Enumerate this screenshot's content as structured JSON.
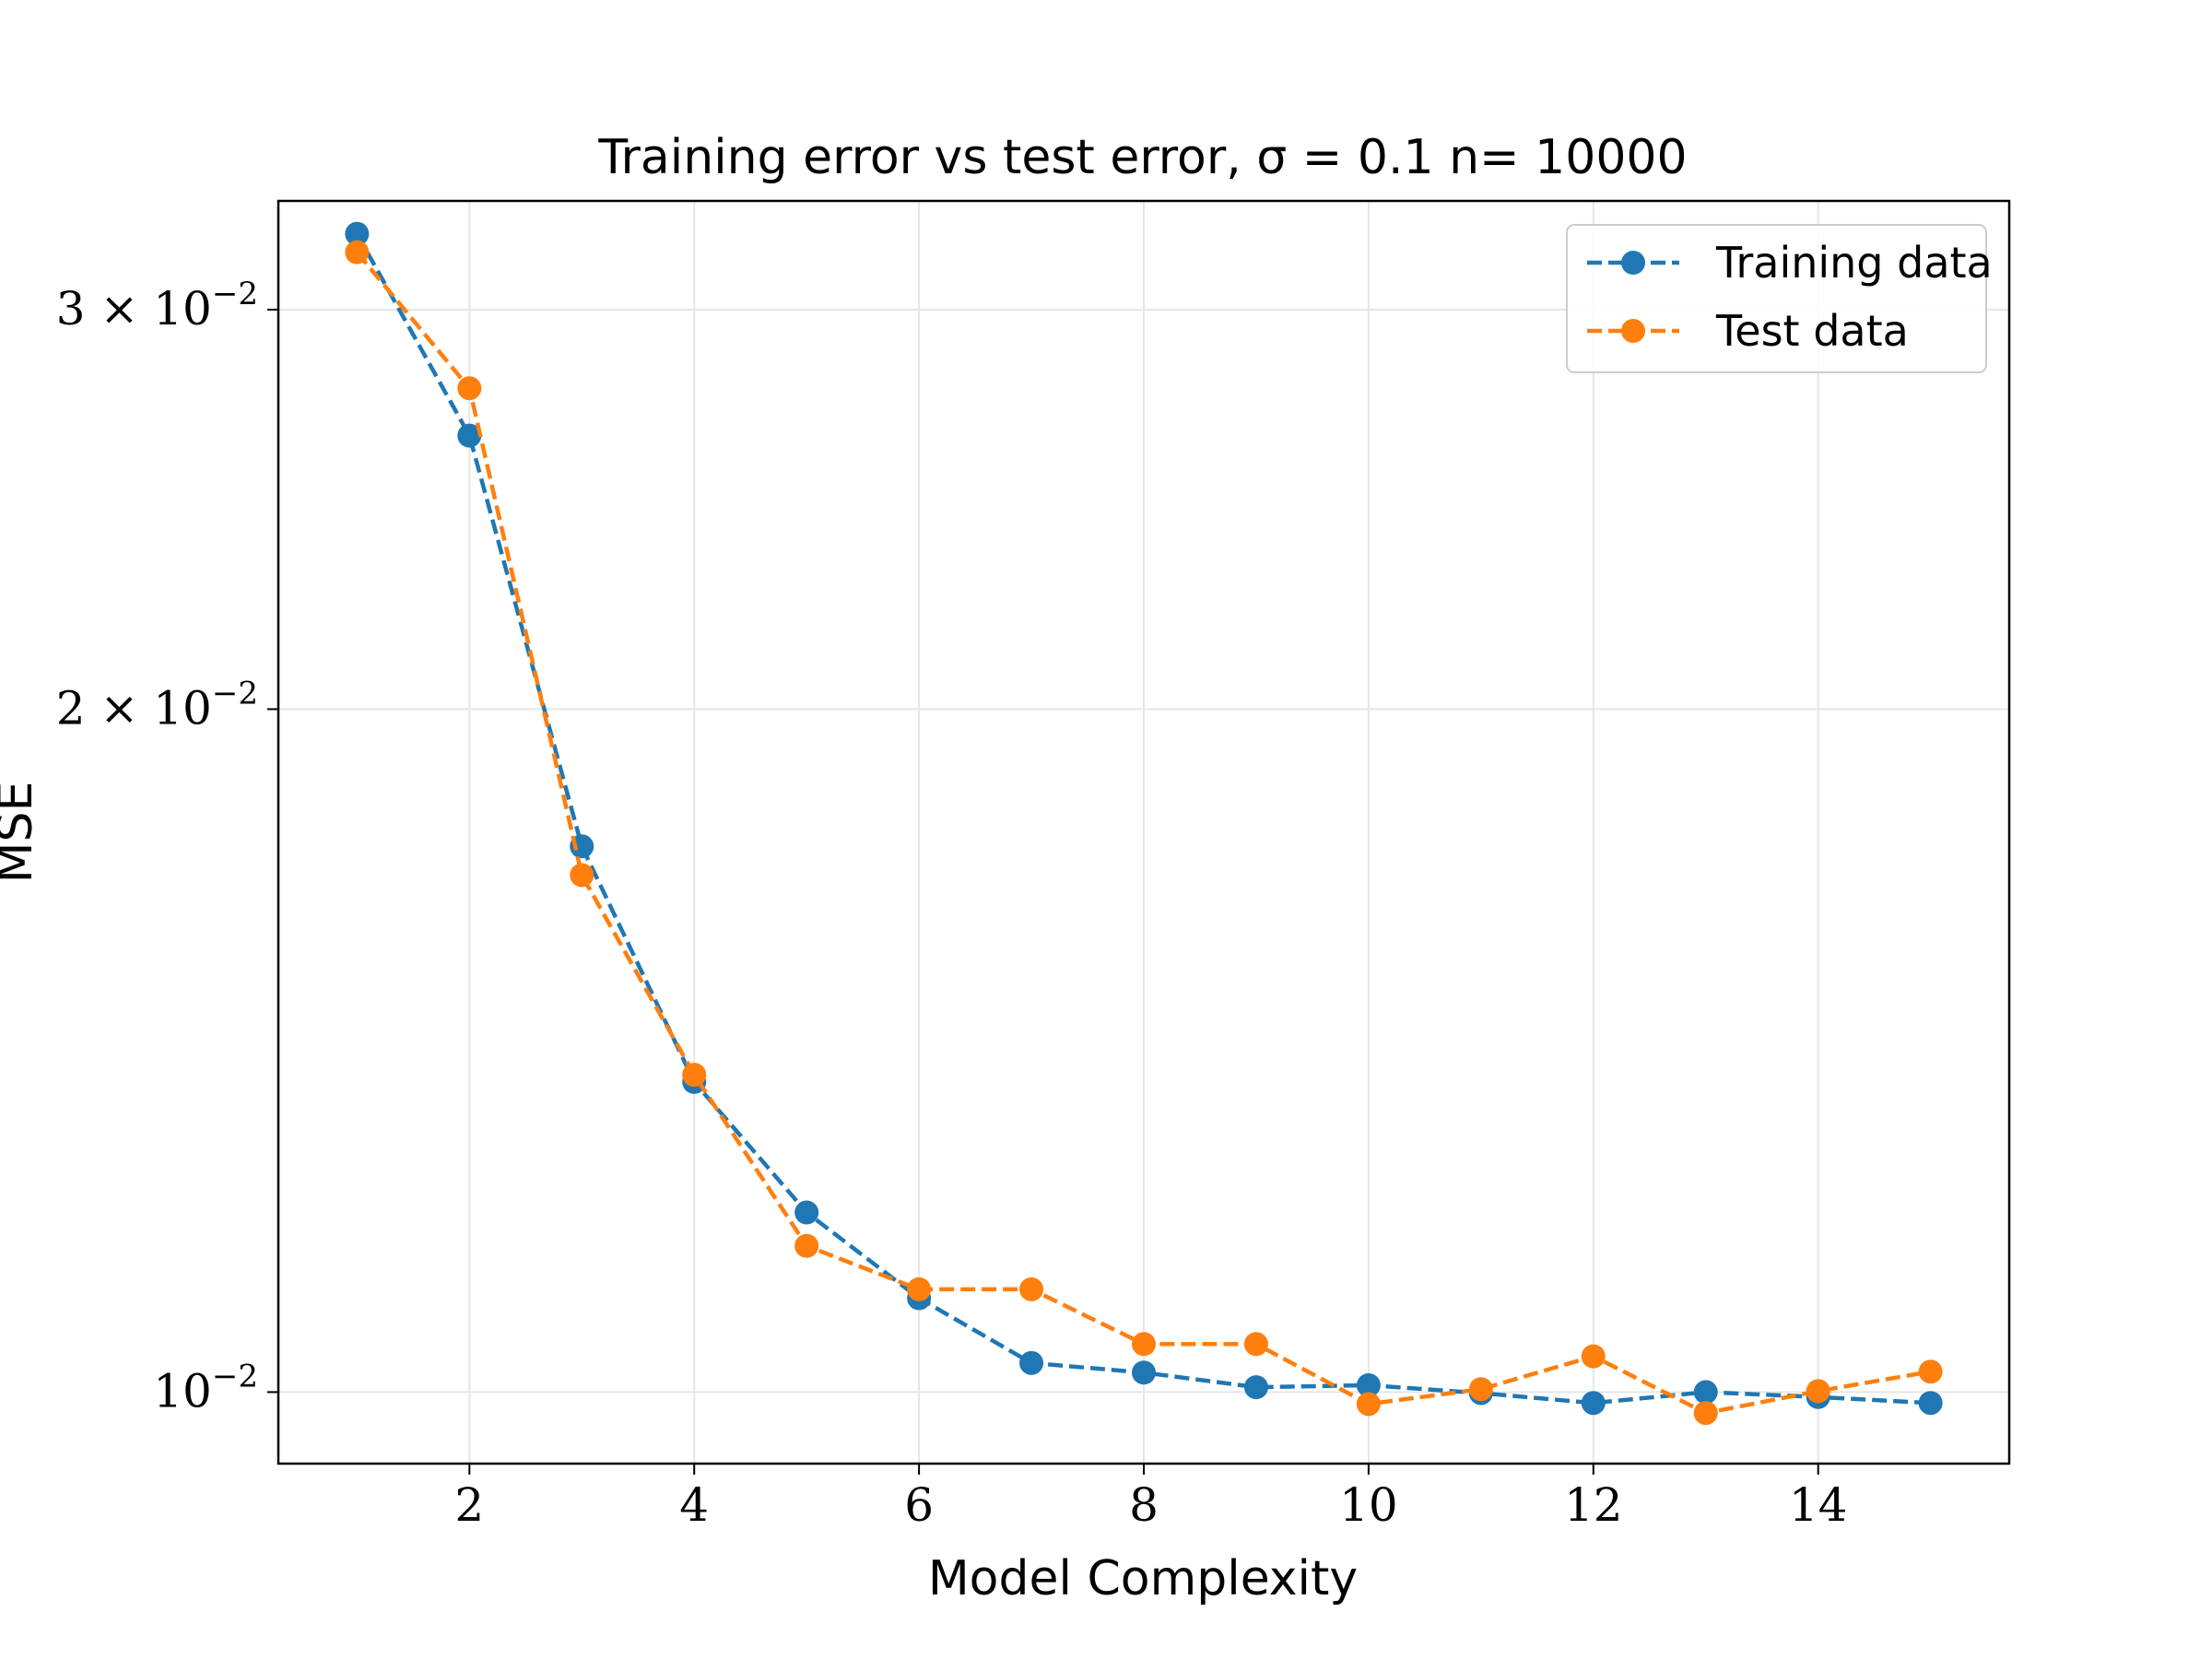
{
  "chart_data": {
    "type": "line",
    "title": "Training error vs test error, σ = 0.1 n= 10000",
    "xlabel": "Model Complexity",
    "ylabel": "MSE",
    "x": [
      1,
      2,
      3,
      4,
      5,
      6,
      7,
      8,
      9,
      10,
      11,
      12,
      13,
      14,
      15
    ],
    "xlim": [
      0.3,
      15.7
    ],
    "ylim": [
      0.0093,
      0.0335
    ],
    "yscale": "log",
    "xticks": [
      2,
      4,
      6,
      8,
      10,
      12,
      14
    ],
    "xtick_labels": [
      "2",
      "4",
      "6",
      "8",
      "10",
      "12",
      "14"
    ],
    "yticks": [
      {
        "value": 0.03,
        "mantissa": "3",
        "exponent": "−2",
        "base": "10"
      },
      {
        "value": 0.02,
        "mantissa": "2",
        "exponent": "−2",
        "base": "10"
      },
      {
        "value": 0.01,
        "mantissa": "",
        "exponent": "−2",
        "base": "10"
      }
    ],
    "grid": true,
    "legend_position": "upper right",
    "series": [
      {
        "name": "Training data",
        "color": "#1f77b4",
        "linestyle": "dashed",
        "marker": "circle",
        "values": [
          0.0324,
          0.0264,
          0.0174,
          0.0137,
          0.012,
          0.011,
          0.0103,
          0.0102,
          0.01005,
          0.01007,
          0.00999,
          0.00989,
          0.01,
          0.00995,
          0.00989
        ]
      },
      {
        "name": "Test data",
        "color": "#ff7f0e",
        "linestyle": "dashed",
        "marker": "circle",
        "values": [
          0.0318,
          0.0277,
          0.0169,
          0.0138,
          0.0116,
          0.0111,
          0.0111,
          0.0105,
          0.0105,
          0.00988,
          0.01003,
          0.01037,
          0.00979,
          0.01001,
          0.01021
        ]
      }
    ]
  }
}
